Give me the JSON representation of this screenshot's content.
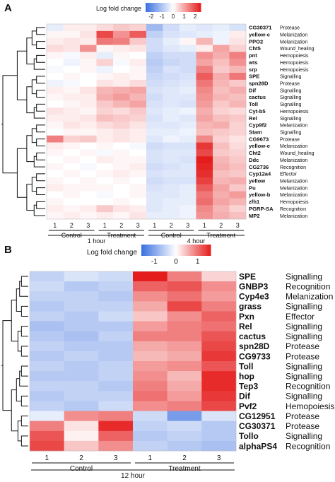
{
  "chart_data": [
    {
      "type": "heatmap",
      "panel": "A",
      "colorbar": {
        "label": "Log fold change",
        "ticks": [
          "-2",
          "-1",
          "0",
          "1",
          "2"
        ],
        "range": [
          -2.5,
          2.5
        ],
        "low_color": "#3a6fe0",
        "mid_color": "#ffffff",
        "high_color": "#e51c1c"
      },
      "groups": [
        {
          "label": "Control",
          "columns": [
            "1",
            "2",
            "3"
          ],
          "time": "1 hour"
        },
        {
          "label": "Treatment",
          "columns": [
            "1",
            "2",
            "3"
          ],
          "time": "1 hour"
        },
        {
          "label": "Control",
          "columns": [
            "1",
            "2",
            "3"
          ],
          "time": "4 hour"
        },
        {
          "label": "Treatment",
          "columns": [
            "1",
            "2",
            "3"
          ],
          "time": "4 hour"
        }
      ],
      "time_labels": [
        "1 hour",
        "4 hour"
      ],
      "rows": [
        {
          "gene": "CG30371",
          "category": "Protease",
          "values": [
            -0.3,
            0.2,
            0.2,
            0.4,
            0.6,
            0.5,
            -1.2,
            -0.6,
            -0.3,
            -0.4,
            -0.3,
            -0.5
          ]
        },
        {
          "gene": "yellow-c",
          "category": "Melanization",
          "values": [
            0.1,
            0.1,
            0.3,
            2.0,
            1.2,
            1.8,
            -0.8,
            -0.5,
            -0.4,
            -0.3,
            -0.2,
            0.2
          ]
        },
        {
          "gene": "PPO2",
          "category": "Melanization",
          "values": [
            0.2,
            0.3,
            0.2,
            1.5,
            1.4,
            0.6,
            -0.6,
            -0.3,
            0.1,
            0.8,
            -0.2,
            0.3
          ]
        },
        {
          "gene": "Cht5",
          "category": "Wound_healing",
          "values": [
            0.4,
            0.3,
            1.2,
            0.1,
            0.2,
            0.3,
            -0.6,
            -0.4,
            -0.3,
            0.2,
            1.0,
            0.5
          ]
        },
        {
          "gene": "pnt",
          "category": "Hemopoiesis",
          "values": [
            0.1,
            -0.1,
            0.2,
            -0.3,
            0.1,
            0.0,
            -0.8,
            -0.6,
            -0.6,
            1.2,
            0.9,
            1.4
          ]
        },
        {
          "gene": "wts",
          "category": "Hemopoiesis",
          "values": [
            0.0,
            -0.2,
            0.1,
            0.5,
            -0.1,
            0.2,
            -0.9,
            -0.7,
            -0.6,
            1.0,
            0.7,
            1.2
          ]
        },
        {
          "gene": "srp",
          "category": "Hemopoiesis",
          "values": [
            -0.1,
            0.0,
            0.1,
            -0.2,
            0.0,
            0.1,
            -0.8,
            -0.5,
            -0.6,
            1.4,
            0.6,
            0.8
          ]
        },
        {
          "gene": "SPE",
          "category": "Signalling",
          "values": [
            0.0,
            0.1,
            0.0,
            0.1,
            0.2,
            0.1,
            -0.7,
            -0.6,
            -0.5,
            1.8,
            0.9,
            1.5
          ]
        },
        {
          "gene": "spn28D",
          "category": "Protease",
          "values": [
            -0.2,
            -0.1,
            0.0,
            0.3,
            0.2,
            0.4,
            -0.6,
            -0.5,
            -0.4,
            1.5,
            0.8,
            0.6
          ]
        },
        {
          "gene": "Dif",
          "category": "Signalling",
          "values": [
            0.2,
            0.1,
            0.3,
            0.8,
            0.9,
            1.0,
            -0.5,
            -0.4,
            -0.3,
            1.3,
            0.7,
            0.9
          ]
        },
        {
          "gene": "cactus",
          "category": "Signalling",
          "values": [
            0.1,
            0.2,
            0.2,
            0.9,
            1.1,
            0.8,
            -0.6,
            -0.4,
            -0.4,
            1.2,
            0.8,
            0.7
          ]
        },
        {
          "gene": "Toll",
          "category": "Signalling",
          "values": [
            0.0,
            0.1,
            0.2,
            0.6,
            0.8,
            1.0,
            -0.5,
            -0.4,
            -0.5,
            1.1,
            0.6,
            0.8
          ]
        },
        {
          "gene": "Cyt-b5",
          "category": "Hemopoiesis",
          "values": [
            0.3,
            0.2,
            0.1,
            0.5,
            0.4,
            0.6,
            -0.4,
            -0.3,
            -0.2,
            0.9,
            0.5,
            0.4
          ]
        },
        {
          "gene": "Rel",
          "category": "Signalling",
          "values": [
            0.2,
            0.2,
            0.3,
            0.7,
            0.6,
            0.5,
            -0.5,
            -0.3,
            -0.4,
            1.0,
            0.7,
            0.6
          ]
        },
        {
          "gene": "Cyp9f2",
          "category": "Melanization",
          "values": [
            0.1,
            0.3,
            0.2,
            0.4,
            0.5,
            0.3,
            -0.4,
            -0.4,
            -0.3,
            0.8,
            0.9,
            0.5
          ]
        },
        {
          "gene": "Stam",
          "category": "Signalling",
          "values": [
            0.0,
            0.1,
            0.1,
            0.2,
            0.3,
            0.2,
            -0.3,
            -0.3,
            -0.2,
            0.7,
            0.6,
            0.5
          ]
        },
        {
          "gene": "CG9673",
          "category": "Protease",
          "values": [
            1.4,
            0.5,
            0.6,
            0.2,
            0.3,
            0.2,
            -0.4,
            -0.2,
            -0.3,
            1.3,
            0.5,
            0.3
          ]
        },
        {
          "gene": "yellow-e",
          "category": "Melanization",
          "values": [
            0.2,
            0.1,
            0.0,
            0.1,
            0.0,
            -0.1,
            -0.6,
            -0.5,
            -0.5,
            2.2,
            0.7,
            0.4
          ]
        },
        {
          "gene": "Cht2",
          "category": "Wound_healing",
          "values": [
            0.1,
            0.0,
            0.1,
            -0.1,
            0.1,
            0.0,
            -0.5,
            -0.4,
            -0.4,
            2.0,
            0.6,
            0.5
          ]
        },
        {
          "gene": "Ddc",
          "category": "Melanization",
          "values": [
            0.0,
            0.1,
            0.0,
            0.2,
            0.1,
            0.1,
            -0.5,
            -0.4,
            -0.5,
            2.5,
            0.8,
            0.6
          ]
        },
        {
          "gene": "CG2736",
          "category": "Recognition",
          "values": [
            0.1,
            0.0,
            -0.1,
            0.0,
            0.1,
            0.2,
            -0.6,
            -0.5,
            -0.4,
            2.4,
            0.9,
            0.7
          ]
        },
        {
          "gene": "Cyp12a4",
          "category": "Effector",
          "values": [
            0.0,
            0.1,
            0.0,
            0.1,
            0.2,
            0.1,
            -0.5,
            -0.4,
            -0.4,
            2.3,
            0.7,
            0.6
          ]
        },
        {
          "gene": "yellow",
          "category": "Melanization",
          "values": [
            0.1,
            0.0,
            0.1,
            0.0,
            0.1,
            0.0,
            -0.6,
            -0.5,
            -0.5,
            2.1,
            0.8,
            0.9
          ]
        },
        {
          "gene": "Pu",
          "category": "Melanization",
          "values": [
            0.2,
            0.1,
            0.1,
            0.1,
            0.0,
            0.1,
            -0.5,
            -0.4,
            -0.3,
            1.8,
            1.0,
            0.6
          ]
        },
        {
          "gene": "yellow-b",
          "category": "Melanization",
          "values": [
            0.0,
            0.1,
            0.0,
            -0.1,
            0.0,
            0.1,
            -0.4,
            -0.4,
            -0.3,
            1.5,
            0.9,
            1.1
          ]
        },
        {
          "gene": "zfh1",
          "category": "Hemopoiesis",
          "values": [
            0.1,
            0.0,
            0.0,
            0.0,
            0.1,
            0.0,
            -0.4,
            -0.3,
            -0.3,
            1.6,
            1.0,
            0.8
          ]
        },
        {
          "gene": "PGRP-SA",
          "category": "Recognition",
          "values": [
            0.2,
            0.1,
            0.2,
            0.6,
            0.3,
            0.2,
            -0.4,
            -0.3,
            -0.2,
            1.3,
            0.8,
            0.5
          ]
        },
        {
          "gene": "MP2",
          "category": "Melanization",
          "values": [
            0.1,
            0.2,
            0.1,
            0.2,
            0.1,
            0.3,
            -0.3,
            -0.3,
            -0.2,
            1.2,
            0.9,
            0.7
          ]
        }
      ]
    },
    {
      "type": "heatmap",
      "panel": "B",
      "colorbar": {
        "label": "Log fold change",
        "ticks": [
          "-1",
          "0",
          "1"
        ],
        "range": [
          -1.6,
          1.6
        ],
        "low_color": "#3a6fe0",
        "mid_color": "#ffffff",
        "high_color": "#e51c1c"
      },
      "groups": [
        {
          "label": "Control",
          "columns": [
            "1",
            "2",
            "3"
          ]
        },
        {
          "label": "Treatment",
          "columns": [
            "1",
            "2",
            "3"
          ]
        }
      ],
      "time_label": "12 hour",
      "rows": [
        {
          "gene": "SPE",
          "category": "Signalling",
          "values": [
            -0.5,
            -0.3,
            -0.4,
            1.6,
            0.9,
            0.3
          ]
        },
        {
          "gene": "GNBP3",
          "category": "Recognition",
          "values": [
            -0.4,
            -0.6,
            -0.5,
            1.1,
            1.2,
            0.8
          ]
        },
        {
          "gene": "Cyp4e3",
          "category": "Melanization",
          "values": [
            -0.5,
            -0.5,
            -0.6,
            0.8,
            1.0,
            0.7
          ]
        },
        {
          "gene": "grass",
          "category": "Signalling",
          "values": [
            -0.6,
            -0.5,
            -0.5,
            0.6,
            1.3,
            0.9
          ]
        },
        {
          "gene": "Pxn",
          "category": "Effector",
          "values": [
            -0.5,
            -0.6,
            -0.4,
            0.4,
            0.8,
            1.1
          ]
        },
        {
          "gene": "Rel",
          "category": "Signalling",
          "values": [
            -0.7,
            -0.6,
            -0.6,
            0.7,
            0.9,
            1.0
          ]
        },
        {
          "gene": "cactus",
          "category": "Signalling",
          "values": [
            -0.6,
            -0.7,
            -0.5,
            0.9,
            0.9,
            1.2
          ]
        },
        {
          "gene": "spn28D",
          "category": "Protease",
          "values": [
            -0.5,
            -0.6,
            -0.6,
            0.6,
            0.7,
            1.3
          ]
        },
        {
          "gene": "CG9733",
          "category": "Protease",
          "values": [
            -0.6,
            -0.5,
            -0.6,
            0.5,
            0.6,
            1.4
          ]
        },
        {
          "gene": "Toll",
          "category": "Signalling",
          "values": [
            -0.5,
            -0.6,
            -0.5,
            0.7,
            0.8,
            1.2
          ]
        },
        {
          "gene": "hop",
          "category": "Signalling",
          "values": [
            -0.6,
            -0.6,
            -0.5,
            0.8,
            0.5,
            1.5
          ]
        },
        {
          "gene": "Tep3",
          "category": "Recognition",
          "values": [
            -0.5,
            -0.5,
            -0.6,
            0.9,
            0.6,
            1.5
          ]
        },
        {
          "gene": "Dif",
          "category": "Signalling",
          "values": [
            -0.6,
            -0.5,
            -0.5,
            1.0,
            0.7,
            1.4
          ]
        },
        {
          "gene": "Pvf2",
          "category": "Hemopoiesis",
          "values": [
            -0.5,
            -0.6,
            -0.4,
            0.8,
            0.9,
            1.3
          ]
        },
        {
          "gene": "CG12951",
          "category": "Protease",
          "values": [
            -0.2,
            0.8,
            0.9,
            -0.4,
            -1.1,
            -0.3
          ]
        },
        {
          "gene": "CG30371",
          "category": "Protease",
          "values": [
            0.9,
            0.2,
            1.5,
            -0.5,
            -0.4,
            -0.6
          ]
        },
        {
          "gene": "Tollo",
          "category": "Signalling",
          "values": [
            1.2,
            0.1,
            1.1,
            -0.6,
            -0.5,
            -0.6
          ]
        },
        {
          "gene": "alphaPS4",
          "category": "Recognition",
          "values": [
            1.3,
            0.4,
            0.8,
            -0.5,
            -0.6,
            -0.7
          ]
        }
      ]
    }
  ],
  "panel_labels": [
    "A",
    "B"
  ]
}
